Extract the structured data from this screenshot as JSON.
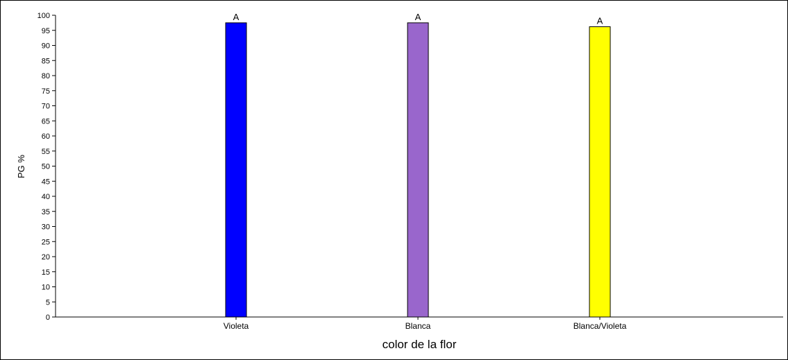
{
  "chart_data": {
    "type": "bar",
    "title": "",
    "xlabel": "color de la flor",
    "ylabel": "PG %",
    "ylim": [
      0,
      100
    ],
    "y_tick_step": 5,
    "grid": false,
    "legend": "none",
    "categories": [
      "Violeta",
      "Blanca",
      "Blanca/Violeta"
    ],
    "values": [
      97.5,
      97.5,
      96.2
    ],
    "bar_colors": [
      "#0000ff",
      "#9966cc",
      "#ffff00"
    ],
    "significance_labels": [
      "A",
      "A",
      "A"
    ]
  }
}
